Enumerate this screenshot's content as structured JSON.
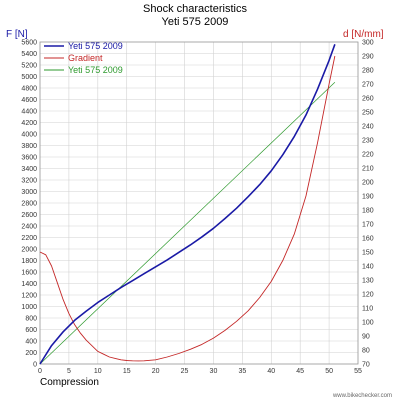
{
  "chart_data": {
    "type": "line",
    "title": "Shock characteristics",
    "subtitle": "Yeti 575 2009",
    "y_left_label": "F [N]",
    "y_right_label": "d [N/mm]",
    "xlabel": "Compression",
    "watermark": "www.bikechecker.com",
    "xlim": [
      0,
      55
    ],
    "ylim_left": [
      0,
      5600
    ],
    "ylim_right": [
      70,
      300
    ],
    "x_ticks": [
      "0",
      "5",
      "10",
      "15",
      "20",
      "25",
      "30",
      "35",
      "40",
      "45",
      "50",
      "55"
    ],
    "y_left_ticks": [
      "0",
      "200",
      "400",
      "600",
      "800",
      "1000",
      "1200",
      "1400",
      "1600",
      "1800",
      "2000",
      "2200",
      "2400",
      "2600",
      "2800",
      "3000",
      "3200",
      "3400",
      "3600",
      "3800",
      "4000",
      "4200",
      "4400",
      "4600",
      "4800",
      "5000",
      "5200",
      "5400",
      "5600"
    ],
    "y_right_ticks": [
      "70",
      "80",
      "90",
      "100",
      "110",
      "120",
      "130",
      "140",
      "150",
      "160",
      "170",
      "180",
      "190",
      "200",
      "210",
      "220",
      "230",
      "240",
      "250",
      "260",
      "270",
      "280",
      "290",
      "300"
    ],
    "grid": true,
    "legend_position": "top-left",
    "series": [
      {
        "name": "Yeti 575 2009",
        "axis": "left",
        "color": "#1a1aa6",
        "x": [
          0,
          2,
          4,
          6,
          8,
          10,
          12,
          14,
          16,
          18,
          20,
          22,
          24,
          26,
          28,
          30,
          32,
          34,
          36,
          38,
          40,
          42,
          44,
          46,
          48,
          50,
          51
        ],
        "values": [
          0,
          320,
          560,
          760,
          920,
          1070,
          1200,
          1330,
          1450,
          1570,
          1690,
          1810,
          1940,
          2070,
          2210,
          2360,
          2530,
          2710,
          2910,
          3120,
          3360,
          3640,
          3960,
          4330,
          4780,
          5280,
          5560
        ]
      },
      {
        "name": "Gradient",
        "axis": "right",
        "color": "#c42727",
        "x": [
          0,
          1,
          2,
          3,
          4,
          5,
          6,
          7,
          8,
          9,
          10,
          11,
          12,
          13,
          14,
          15,
          16,
          17,
          18,
          20,
          22,
          24,
          26,
          28,
          30,
          32,
          34,
          36,
          38,
          40,
          42,
          44,
          46,
          48,
          50,
          51
        ],
        "values": [
          150,
          148,
          140,
          128,
          116,
          106,
          98,
          92,
          87,
          83,
          79,
          77,
          75,
          74,
          73,
          72.5,
          72.3,
          72.2,
          72.3,
          73,
          75,
          77.5,
          80.5,
          84,
          88.5,
          94,
          100.5,
          108,
          117.5,
          129,
          144,
          163,
          190,
          228,
          270,
          290
        ]
      },
      {
        "name": "Yeti 575 2009",
        "axis": "left",
        "color": "#2e9a2e",
        "x": [
          0,
          51
        ],
        "values": [
          0,
          4900
        ]
      }
    ]
  }
}
